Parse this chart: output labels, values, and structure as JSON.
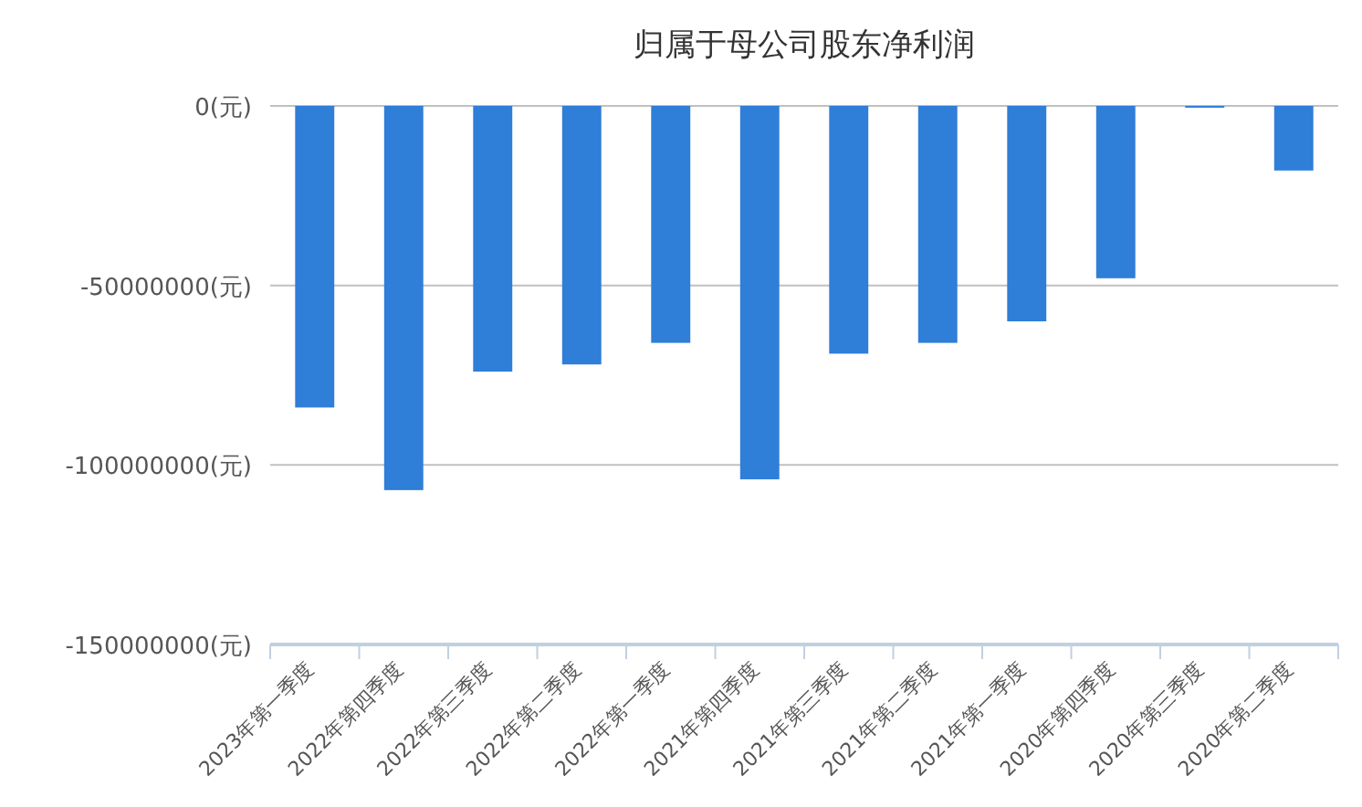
{
  "chart_data": {
    "type": "bar",
    "title": "归属于母公司股东净利润",
    "categories": [
      "2023年第一季度",
      "2022年第四季度",
      "2022年第三季度",
      "2022年第二季度",
      "2022年第一季度",
      "2021年第四季度",
      "2021年第三季度",
      "2021年第二季度",
      "2021年第一季度",
      "2020年第四季度",
      "2020年第三季度",
      "2020年第二季度"
    ],
    "values": [
      -84000000,
      -107000000,
      -74000000,
      -72000000,
      -66000000,
      -104000000,
      -69000000,
      -66000000,
      -60000000,
      -48000000,
      -500000,
      -18000000
    ],
    "color": "#2f7ed8",
    "ylim": [
      -150000000,
      0
    ],
    "yticks": [
      {
        "value": 0,
        "label": "0(元)"
      },
      {
        "value": -50000000,
        "label": "-50000000(元)"
      },
      {
        "value": -100000000,
        "label": "-100000000(元)"
      },
      {
        "value": -150000000,
        "label": "-150000000(元)"
      }
    ],
    "grid": "y"
  }
}
